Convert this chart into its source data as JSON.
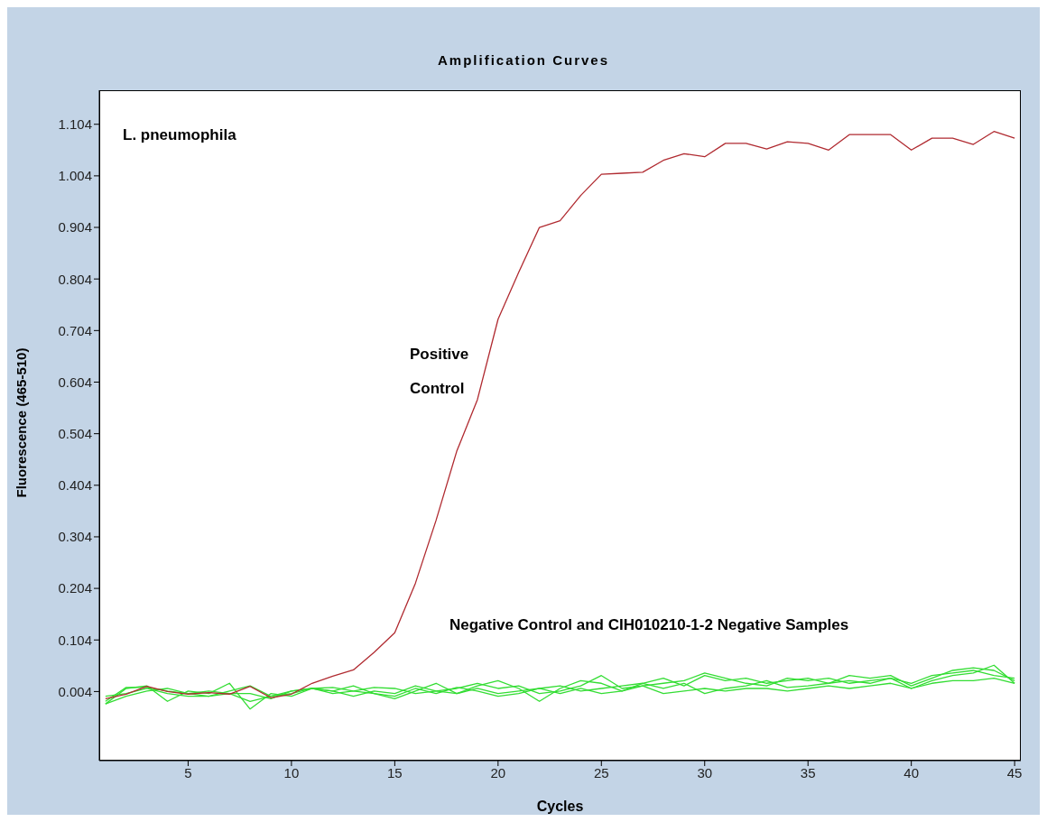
{
  "chart_data": {
    "type": "line",
    "title": "Amplification Curves",
    "xlabel": "Cycles",
    "ylabel": "Fluorescence (465-510)",
    "x": [
      1,
      2,
      3,
      4,
      5,
      6,
      7,
      8,
      9,
      10,
      11,
      12,
      13,
      14,
      15,
      16,
      17,
      18,
      19,
      20,
      21,
      22,
      23,
      24,
      25,
      26,
      27,
      28,
      29,
      30,
      31,
      32,
      33,
      34,
      35,
      36,
      37,
      38,
      39,
      40,
      41,
      42,
      43,
      44,
      45
    ],
    "series": [
      {
        "color": "#33dd33",
        "values": [
          -0.02,
          0.01,
          0.015,
          -0.015,
          0.005,
          0.0,
          0.02,
          -0.03,
          0.0,
          -0.005,
          0.01,
          0.005,
          0.015,
          0.0,
          -0.01,
          0.005,
          0.02,
          0.0,
          0.015,
          0.025,
          0.01,
          -0.015,
          0.01,
          0.025,
          0.02,
          0.005,
          0.02,
          0.03,
          0.015,
          0.035,
          0.025,
          0.03,
          0.02,
          0.025,
          0.03,
          0.02,
          0.035,
          0.03,
          0.035,
          0.015,
          0.03,
          0.045,
          0.05,
          0.045,
          0.025
        ]
      },
      {
        "color": "#33dd33",
        "values": [
          -0.015,
          0.012,
          0.012,
          0.005,
          0.0,
          0.005,
          0.0,
          0.0,
          -0.01,
          0.005,
          0.01,
          0.012,
          0.005,
          0.0,
          -0.005,
          0.01,
          0.0,
          0.012,
          0.005,
          -0.005,
          0.0,
          0.01,
          0.015,
          0.005,
          0.01,
          0.015,
          0.02,
          0.01,
          0.02,
          0.0,
          0.01,
          0.015,
          0.025,
          0.012,
          0.015,
          0.02,
          0.025,
          0.02,
          0.03,
          0.02,
          0.035,
          0.04,
          0.045,
          0.035,
          0.03
        ]
      },
      {
        "color": "#33dd33",
        "values": [
          -0.005,
          0.0,
          0.01,
          0.0,
          -0.005,
          -0.005,
          0.005,
          0.015,
          -0.005,
          0.005,
          0.01,
          0.0,
          0.005,
          0.012,
          0.01,
          0.0,
          0.005,
          0.01,
          0.02,
          0.01,
          0.015,
          0.0,
          0.005,
          0.015,
          0.035,
          0.01,
          0.015,
          0.02,
          0.025,
          0.04,
          0.03,
          0.02,
          0.015,
          0.03,
          0.025,
          0.03,
          0.02,
          0.025,
          0.03,
          0.01,
          0.025,
          0.035,
          0.04,
          0.055,
          0.02
        ]
      },
      {
        "color": "#33dd33",
        "values": [
          -0.02,
          -0.005,
          0.005,
          0.01,
          0.0,
          -0.005,
          0.0,
          -0.015,
          -0.005,
          0.0,
          0.01,
          0.005,
          -0.005,
          0.005,
          0.0,
          0.015,
          0.005,
          0.0,
          0.01,
          0.0,
          0.005,
          0.01,
          0.0,
          0.01,
          0.0,
          0.005,
          0.015,
          0.0,
          0.005,
          0.01,
          0.005,
          0.01,
          0.01,
          0.005,
          0.01,
          0.015,
          0.01,
          0.015,
          0.02,
          0.01,
          0.02,
          0.025,
          0.025,
          0.03,
          0.02
        ]
      },
      {
        "color": "#b02a30",
        "values": [
          -0.01,
          -0.001,
          0.014,
          0.004,
          -0.001,
          0.002,
          -0.001,
          0.014,
          -0.008,
          -0.001,
          0.02,
          0.034,
          0.046,
          0.08,
          0.118,
          0.214,
          0.336,
          0.47,
          0.57,
          0.726,
          0.817,
          0.904,
          0.917,
          0.966,
          1.007,
          1.009,
          1.011,
          1.034,
          1.047,
          1.041,
          1.067,
          1.067,
          1.056,
          1.07,
          1.067,
          1.054,
          1.084,
          1.084,
          1.084,
          1.054,
          1.077,
          1.077,
          1.065,
          1.09,
          1.077
        ]
      }
    ],
    "xlim": [
      0.7,
      45.3
    ],
    "xticks": [
      5,
      10,
      15,
      20,
      25,
      30,
      35,
      40,
      45
    ],
    "ylim": [
      -0.13,
      1.17
    ],
    "yticks": [
      0.004,
      0.104,
      0.204,
      0.304,
      0.404,
      0.504,
      0.604,
      0.704,
      0.804,
      0.904,
      1.004,
      1.104
    ],
    "grid": false,
    "legend": false,
    "annotations": [
      "L. pneumophila",
      "Positive Control",
      "Negative Control and CIH010210-1-2 Negative Samples"
    ]
  }
}
